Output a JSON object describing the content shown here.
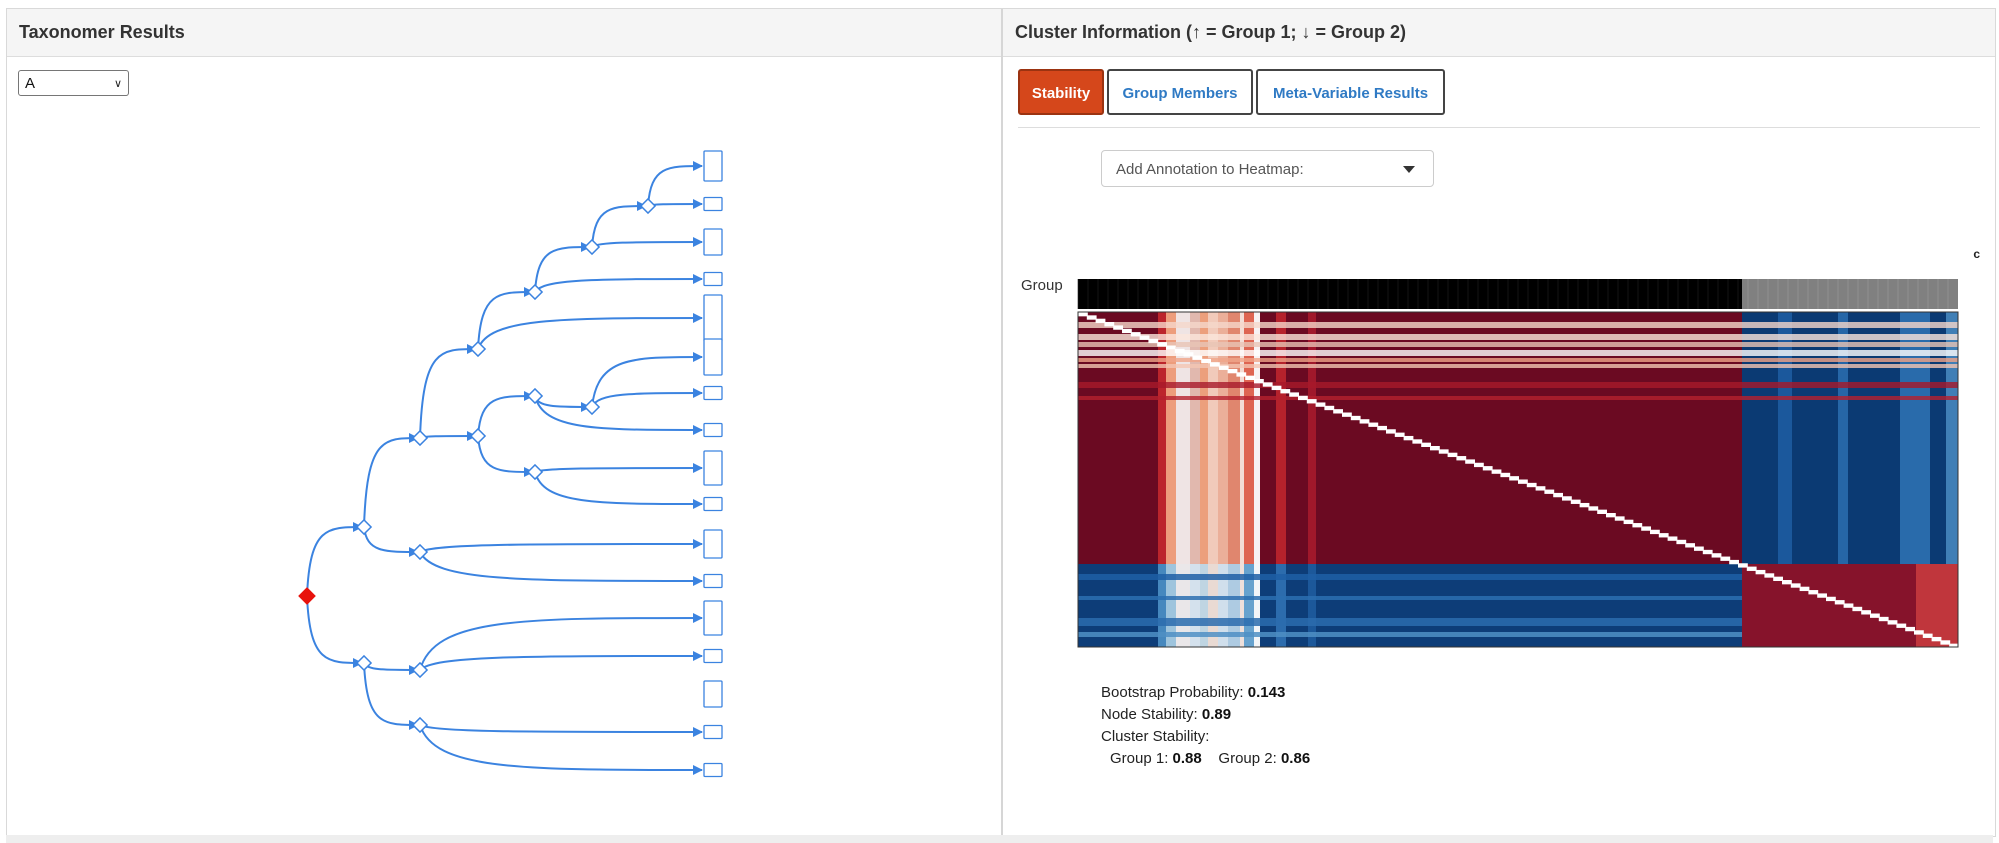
{
  "left_panel": {
    "title": "Taxonomer Results",
    "select_value": "A"
  },
  "right_panel": {
    "title": "Cluster Information (↑ = Group 1; ↓ = Group 2)",
    "tabs": [
      {
        "label": "Stability",
        "active": true
      },
      {
        "label": "Group Members",
        "active": false
      },
      {
        "label": "Meta-Variable Results",
        "active": false
      }
    ],
    "annotation_placeholder": "Add Annotation to Heatmap:",
    "corner_label": "c",
    "heatmap": {
      "row_label": "Group",
      "group_colors": {
        "group1": "#000000",
        "group2": "#808080"
      }
    },
    "stats": {
      "bootstrap_label": "Bootstrap Probability:",
      "bootstrap_value": "0.143",
      "node_label": "Node Stability:",
      "node_value": "0.89",
      "cluster_label": "Cluster Stability:",
      "group1_label": "Group 1:",
      "group1_value": "0.88",
      "group2_label": "Group 2:",
      "group2_value": "0.86"
    }
  },
  "colors": {
    "accent": "#d5471b",
    "link": "#2f7ac4",
    "tree_edge": "#3b83e0",
    "root_node": "#e8120c",
    "heat_red": "#67001f",
    "heat_blue": "#053061"
  }
}
